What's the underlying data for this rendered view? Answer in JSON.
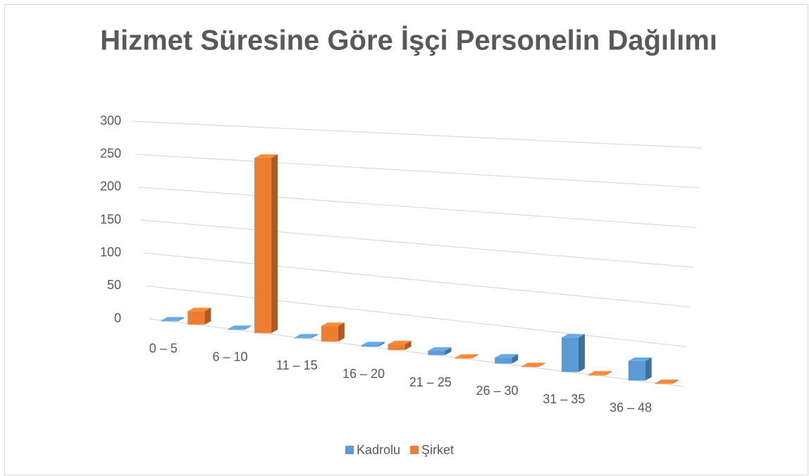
{
  "chart_data": {
    "type": "bar3d",
    "title": "Hizmet Süresine Göre İşçi Personelin Dağılımı",
    "categories": [
      "0 – 5",
      "6 – 10",
      "11 – 15",
      "16 – 20",
      "21 – 25",
      "26 – 30",
      "31 – 35",
      "36 – 48"
    ],
    "series": [
      {
        "name": "Kadrolu",
        "color": "#5b9bd5",
        "values": [
          1,
          1,
          1,
          2,
          6,
          8,
          45,
          25
        ]
      },
      {
        "name": "Şirket",
        "color": "#ed7d31",
        "values": [
          20,
          255,
          22,
          8,
          1,
          1,
          1,
          1
        ]
      }
    ],
    "ylim": [
      0,
      300
    ],
    "yticks": [
      0,
      50,
      100,
      150,
      200,
      250,
      300
    ],
    "grid": true,
    "legend": "bottom"
  }
}
